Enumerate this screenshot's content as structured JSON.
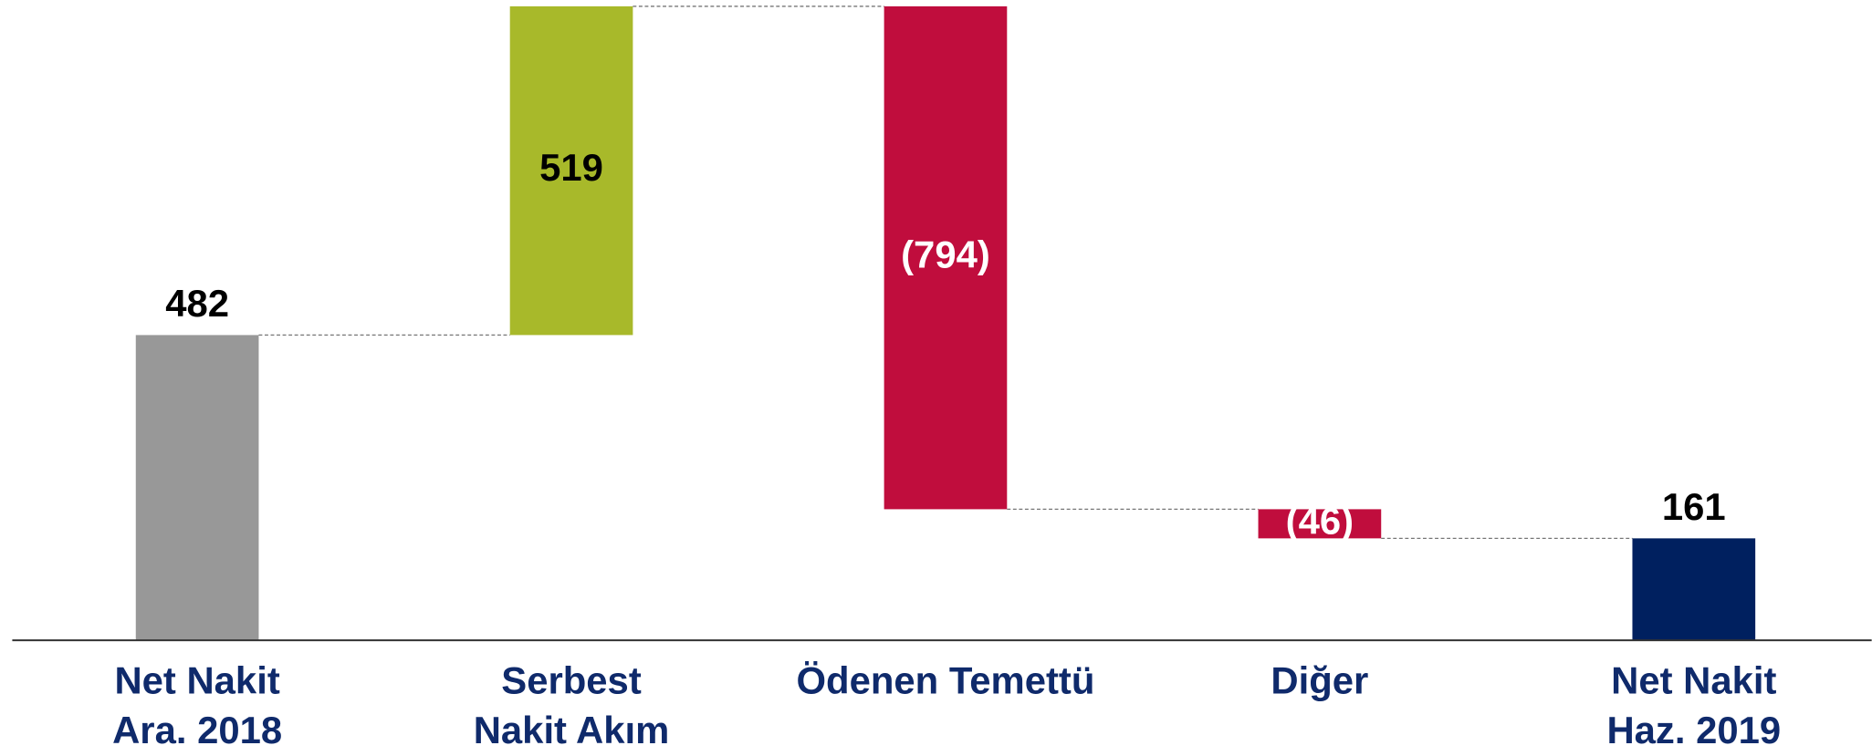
{
  "chart_data": {
    "type": "waterfall",
    "categories": [
      [
        "Net Nakit",
        "Ara. 2018"
      ],
      [
        "Serbest",
        "Nakit Akım"
      ],
      [
        "Ödenen Temettü"
      ],
      [
        "Diğer"
      ],
      [
        "Net Nakit",
        "Haz. 2019"
      ]
    ],
    "values": [
      482,
      519,
      -794,
      -46,
      161
    ],
    "value_labels": [
      "482",
      "519",
      "(794)",
      "(46)",
      "161"
    ],
    "measure": [
      "absolute",
      "relative",
      "relative",
      "relative",
      "total"
    ],
    "colors": [
      "#989898",
      "#a8b92a",
      "#c00d3d",
      "#c00d3d",
      "#00205f"
    ],
    "value_label_colors": [
      "#000000",
      "#000000",
      "#ffffff",
      "#ffffff",
      "#000000"
    ],
    "category_color": "#0f2a6b",
    "ylim": [
      0,
      1011
    ]
  }
}
